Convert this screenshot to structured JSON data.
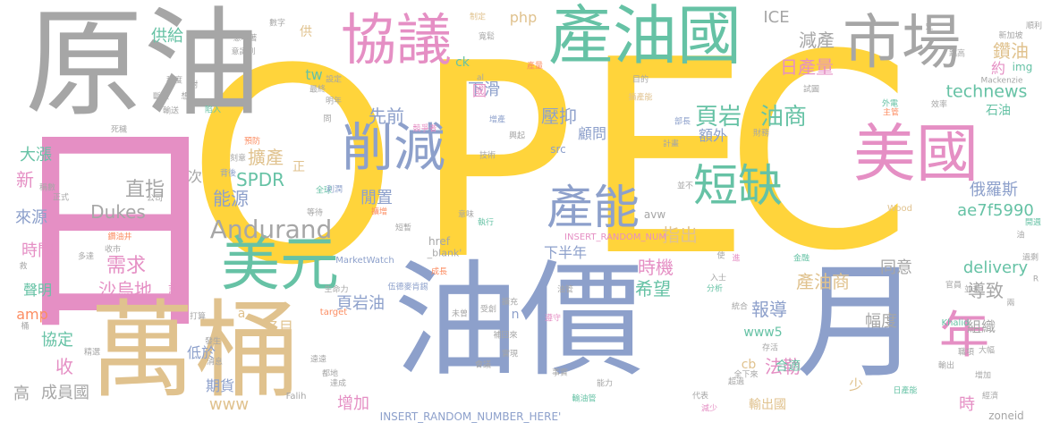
{
  "palette": {
    "yellow": "#FFD43B",
    "gray": "#A6A6A6",
    "pink": "#E58FC4",
    "tan": "#E0C28E",
    "green": "#66C2A5",
    "blue": "#8DA0CB",
    "orange": "#FC8D62",
    "lime": "#A6D854"
  },
  "words": [
    {
      "text": "O",
      "color": "yellow"
    },
    {
      "text": "P",
      "color": "yellow"
    },
    {
      "text": "E",
      "color": "yellow"
    },
    {
      "text": "C",
      "color": "yellow"
    },
    {
      "text": "原油",
      "color": "gray"
    },
    {
      "text": "日",
      "color": "pink"
    },
    {
      "text": "油價",
      "color": "blue"
    },
    {
      "text": "萬桶",
      "color": "tan"
    },
    {
      "text": "月",
      "color": "blue"
    },
    {
      "text": "產油國",
      "color": "green"
    },
    {
      "text": "美國",
      "color": "pink"
    },
    {
      "text": "協議",
      "color": "pink"
    },
    {
      "text": "市場",
      "color": "gray"
    },
    {
      "text": "美元",
      "color": "green"
    },
    {
      "text": "削減",
      "color": "blue"
    },
    {
      "text": "產能",
      "color": "blue"
    },
    {
      "text": "短缺",
      "color": "green"
    },
    {
      "text": "年",
      "color": "pink"
    },
    {
      "text": "頁岩",
      "color": "green"
    },
    {
      "text": "油商",
      "color": "green"
    },
    {
      "text": "Andurand",
      "color": "gray"
    },
    {
      "text": "technews",
      "color": "green"
    },
    {
      "text": "鑽油",
      "color": "tan"
    },
    {
      "text": "減產",
      "color": "gray"
    },
    {
      "text": "日產量",
      "color": "pink"
    },
    {
      "text": "壓抑",
      "color": "blue"
    },
    {
      "text": "先前",
      "color": "blue"
    },
    {
      "text": "下滑",
      "color": "blue"
    },
    {
      "text": "供給",
      "color": "green"
    },
    {
      "text": "SPDR",
      "color": "green"
    },
    {
      "text": "能源",
      "color": "blue"
    },
    {
      "text": "擴產",
      "color": "tan"
    },
    {
      "text": "直指",
      "color": "gray"
    },
    {
      "text": "Dukes",
      "color": "gray"
    },
    {
      "text": "需求",
      "color": "pink"
    },
    {
      "text": "沙烏地",
      "color": "pink"
    },
    {
      "text": "時機",
      "color": "pink"
    },
    {
      "text": "希望",
      "color": "green"
    },
    {
      "text": "報導",
      "color": "blue"
    },
    {
      "text": "產油商",
      "color": "tan"
    },
    {
      "text": "俄羅斯",
      "color": "blue"
    },
    {
      "text": "ae7f5990",
      "color": "green"
    },
    {
      "text": "delivery",
      "color": "green"
    },
    {
      "text": "石油",
      "color": "green"
    },
    {
      "text": "導致",
      "color": "gray"
    },
    {
      "text": "組織",
      "color": "gray"
    },
    {
      "text": "同意",
      "color": "gray"
    },
    {
      "text": "幅度",
      "color": "gray"
    },
    {
      "text": "法勒",
      "color": "pink"
    },
    {
      "text": "輸出國",
      "color": "tan"
    },
    {
      "text": "頁岩油",
      "color": "blue"
    },
    {
      "text": "增加",
      "color": "pink"
    },
    {
      "text": "www5",
      "color": "green"
    },
    {
      "text": "www",
      "color": "tan"
    },
    {
      "text": "期貨",
      "color": "blue"
    },
    {
      "text": "低於",
      "color": "blue"
    },
    {
      "text": "名目",
      "color": "tan"
    },
    {
      "text": "高",
      "color": "gray"
    },
    {
      "text": "成員國",
      "color": "gray"
    },
    {
      "text": "收",
      "color": "pink"
    },
    {
      "text": "協定",
      "color": "green"
    },
    {
      "text": "amp",
      "color": "orange"
    },
    {
      "text": "聲明",
      "color": "green"
    },
    {
      "text": "時間",
      "color": "pink"
    },
    {
      "text": "來源",
      "color": "blue"
    },
    {
      "text": "新",
      "color": "pink"
    },
    {
      "text": "大漲",
      "color": "green"
    },
    {
      "text": "閒置",
      "color": "blue"
    },
    {
      "text": "指出",
      "color": "tan"
    },
    {
      "text": "下半年",
      "color": "blue"
    },
    {
      "text": "顧問",
      "color": "blue"
    },
    {
      "text": "額外",
      "color": "blue"
    },
    {
      "text": "php",
      "color": "tan"
    },
    {
      "text": "ICE",
      "color": "gray"
    },
    {
      "text": "ck",
      "color": "green"
    },
    {
      "text": "tw",
      "color": "green"
    },
    {
      "text": "cb",
      "color": "tan"
    },
    {
      "text": "合適",
      "color": "green"
    },
    {
      "text": "次",
      "color": "gray"
    },
    {
      "text": "正",
      "color": "tan"
    },
    {
      "text": "說",
      "color": "pink"
    },
    {
      "text": "時",
      "color": "pink"
    },
    {
      "text": "少",
      "color": "tan"
    },
    {
      "text": "約",
      "color": "pink"
    },
    {
      "text": "國",
      "color": "pink"
    },
    {
      "text": "供",
      "color": "tan"
    },
    {
      "text": "n",
      "color": "blue"
    },
    {
      "text": "a",
      "color": "tan"
    },
    {
      "text": "img",
      "color": "green"
    },
    {
      "text": "zoneid",
      "color": "gray"
    },
    {
      "text": "avw",
      "color": "gray"
    },
    {
      "text": "src",
      "color": "blue"
    },
    {
      "text": "href",
      "color": "gray"
    },
    {
      "text": "_blank'",
      "color": "gray"
    },
    {
      "text": "INSERT_RANDOM_NUMBER_HERE'",
      "color": "blue"
    },
    {
      "text": "INSERT_RANDOM_NUM",
      "color": "pink"
    },
    {
      "text": "Wood",
      "color": "tan"
    },
    {
      "text": "Khalid",
      "color": "green"
    },
    {
      "text": "Mackenzie",
      "color": "gray"
    },
    {
      "text": "MarketWatch",
      "color": "blue"
    },
    {
      "text": "target",
      "color": "orange"
    },
    {
      "text": "Falih",
      "color": "gray"
    },
    {
      "text": "數字",
      "color": "gray"
    },
    {
      "text": "意味著",
      "color": "gray"
    },
    {
      "text": "意識到",
      "color": "gray"
    },
    {
      "text": "制定",
      "color": "tan"
    },
    {
      "text": "寬鬆",
      "color": "gray"
    },
    {
      "text": "目的",
      "color": "gray"
    },
    {
      "text": "新加坡",
      "color": "gray"
    },
    {
      "text": "競爭者",
      "color": "pink"
    },
    {
      "text": "增產",
      "color": "blue"
    },
    {
      "text": "擴產能",
      "color": "tan"
    },
    {
      "text": "部長",
      "color": "blue"
    },
    {
      "text": "外電",
      "color": "green"
    },
    {
      "text": "試圖",
      "color": "gray"
    },
    {
      "text": "效率",
      "color": "gray"
    },
    {
      "text": "主管",
      "color": "orange"
    },
    {
      "text": "興起",
      "color": "gray"
    },
    {
      "text": "技術",
      "color": "gray"
    },
    {
      "text": "計畫",
      "color": "gray"
    },
    {
      "text": "預防",
      "color": "orange"
    },
    {
      "text": "背後",
      "color": "blue"
    },
    {
      "text": "刻意",
      "color": "gray"
    },
    {
      "text": "全球",
      "color": "green"
    },
    {
      "text": "利潤",
      "color": "blue"
    },
    {
      "text": "等待",
      "color": "gray"
    },
    {
      "text": "擴增",
      "color": "orange"
    },
    {
      "text": "短暫",
      "color": "gray"
    },
    {
      "text": "執行",
      "color": "green"
    },
    {
      "text": "成長",
      "color": "orange"
    },
    {
      "text": "生命力",
      "color": "gray"
    },
    {
      "text": "伍德麥肯錫",
      "color": "blue"
    },
    {
      "text": "未曾",
      "color": "gray"
    },
    {
      "text": "受創",
      "color": "gray"
    },
    {
      "text": "擴充",
      "color": "gray"
    },
    {
      "text": "油管",
      "color": "gray"
    },
    {
      "text": "遵守",
      "color": "pink"
    },
    {
      "text": "補回來",
      "color": "gray"
    },
    {
      "text": "會議",
      "color": "gray"
    },
    {
      "text": "實現",
      "color": "gray"
    },
    {
      "text": "輸油管",
      "color": "green"
    },
    {
      "text": "事實",
      "color": "gray"
    },
    {
      "text": "能力",
      "color": "gray"
    },
    {
      "text": "代表",
      "color": "gray"
    },
    {
      "text": "減少",
      "color": "pink"
    },
    {
      "text": "分析",
      "color": "green"
    },
    {
      "text": "統合",
      "color": "gray"
    },
    {
      "text": "入士",
      "color": "gray"
    },
    {
      "text": "存活",
      "color": "gray"
    },
    {
      "text": "超過",
      "color": "gray"
    },
    {
      "text": "日產能",
      "color": "green"
    },
    {
      "text": "輸出",
      "color": "gray"
    },
    {
      "text": "職項",
      "color": "gray"
    },
    {
      "text": "大幅",
      "color": "gray"
    },
    {
      "text": "經濟",
      "color": "gray"
    },
    {
      "text": "金融",
      "color": "green"
    },
    {
      "text": "全下來",
      "color": "gray"
    },
    {
      "text": "官員",
      "color": "gray"
    },
    {
      "text": "並未",
      "color": "gray"
    },
    {
      "text": "過剩",
      "color": "gray"
    },
    {
      "text": "開週",
      "color": "green"
    },
    {
      "text": "順利",
      "color": "gray"
    },
    {
      "text": "跳高",
      "color": "gray"
    },
    {
      "text": "產量",
      "color": "orange"
    },
    {
      "text": "陷入",
      "color": "green"
    },
    {
      "text": "最終",
      "color": "gray"
    },
    {
      "text": "設定",
      "color": "gray"
    },
    {
      "text": "明年",
      "color": "gray"
    },
    {
      "text": "程度",
      "color": "gray"
    },
    {
      "text": "斷然",
      "color": "gray"
    },
    {
      "text": "想",
      "color": "gray"
    },
    {
      "text": "輸送",
      "color": "gray"
    },
    {
      "text": "死穢",
      "color": "gray"
    },
    {
      "text": "稱數",
      "color": "gray"
    },
    {
      "text": "正式",
      "color": "gray"
    },
    {
      "text": "公司",
      "color": "gray"
    },
    {
      "text": "鑽油井",
      "color": "orange"
    },
    {
      "text": "救",
      "color": "gray"
    },
    {
      "text": "多達",
      "color": "gray"
    },
    {
      "text": "收市",
      "color": "gray"
    },
    {
      "text": "桶",
      "color": "gray"
    },
    {
      "text": "打算",
      "color": "gray"
    },
    {
      "text": "精選",
      "color": "gray"
    },
    {
      "text": "發生",
      "color": "gray"
    },
    {
      "text": "都地",
      "color": "gray"
    },
    {
      "text": "達成",
      "color": "gray"
    },
    {
      "text": "消息",
      "color": "gray"
    },
    {
      "text": "遠遠",
      "color": "gray"
    },
    {
      "text": "對",
      "color": "gray"
    },
    {
      "text": "R",
      "color": "gray"
    },
    {
      "text": "al",
      "color": "gray"
    },
    {
      "text": "並不",
      "color": "gray"
    },
    {
      "text": "意味",
      "color": "gray"
    },
    {
      "text": "史",
      "color": "gray"
    },
    {
      "text": "問",
      "color": "gray"
    },
    {
      "text": "進",
      "color": "pink"
    },
    {
      "text": "使",
      "color": "gray"
    },
    {
      "text": "財務",
      "color": "gray"
    },
    {
      "text": "兩",
      "color": "gray"
    },
    {
      "text": "油",
      "color": "gray"
    },
    {
      "text": "增加",
      "color": "gray"
    },
    {
      "text": "頂",
      "color": "gray"
    },
    {
      "text": "保",
      "color": "gray"
    }
  ]
}
